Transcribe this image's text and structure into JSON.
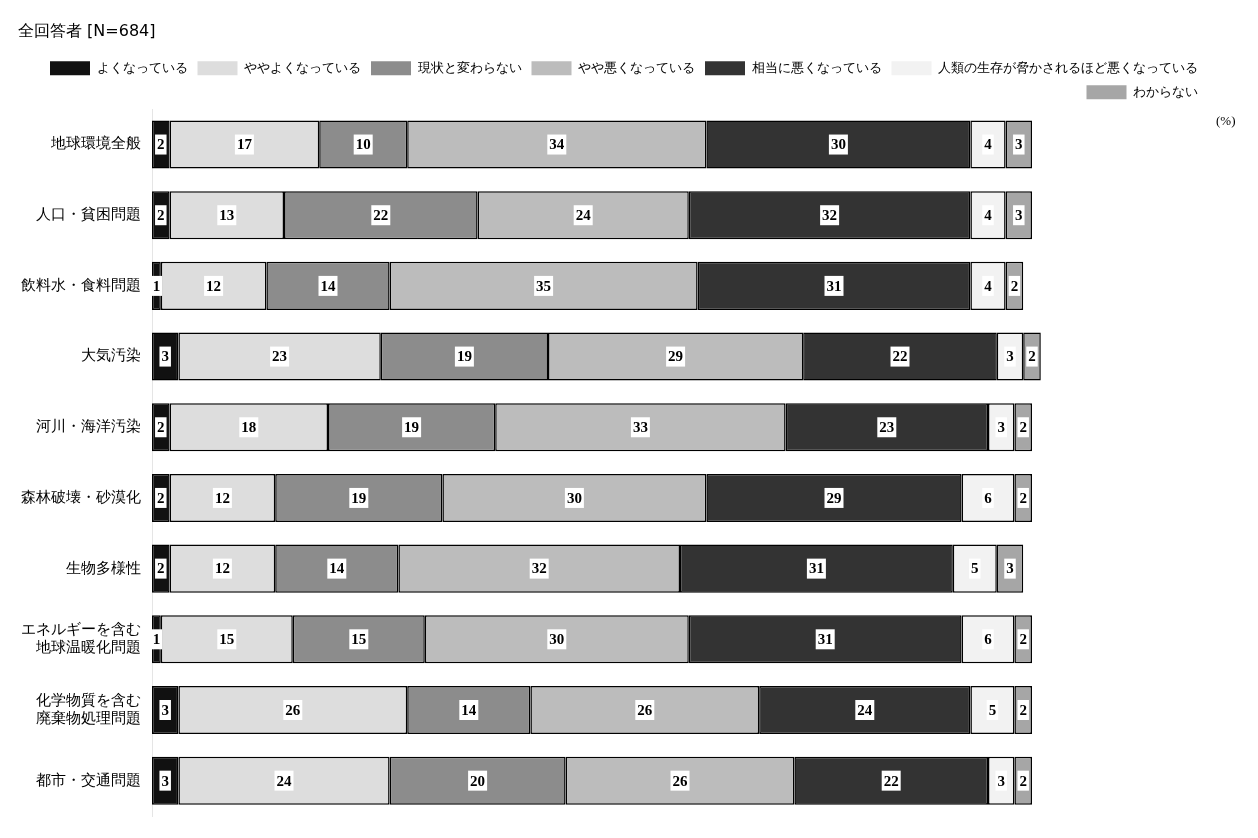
{
  "chart_data": {
    "type": "bar",
    "orientation": "horizontal",
    "stacked": true,
    "data_labels": true,
    "legend": "top",
    "grid": false,
    "tick_labels": "y",
    "title": "全回答者 [N=684]",
    "annotations": [
      "(%)"
    ],
    "categories": [
      "地球環境全般",
      "人口・貧困問題",
      "飲料水・食料問題",
      "大気汚染",
      "河川・海洋汚染",
      "森林破壊・砂漠化",
      "生物多様性",
      "エネルギーを含む地球温暖化問題",
      "化学物質を含む廃棄物処理問題",
      "都市・交通問題"
    ],
    "series": [
      {
        "name": "よくなっている",
        "color": "#111111",
        "values": [
          2,
          2,
          1,
          3,
          2,
          2,
          2,
          1,
          3,
          3
        ]
      },
      {
        "name": "ややよくなっている",
        "color": "#dddddd",
        "values": [
          17,
          13,
          12,
          23,
          18,
          12,
          12,
          15,
          26,
          24
        ]
      },
      {
        "name": "現状と変わらない",
        "color": "#8c8c8c",
        "values": [
          10,
          22,
          14,
          19,
          19,
          19,
          14,
          15,
          14,
          20
        ]
      },
      {
        "name": "やや悪くなっている",
        "color": "#bcbcbc",
        "values": [
          34,
          24,
          35,
          29,
          33,
          30,
          32,
          30,
          26,
          26
        ]
      },
      {
        "name": "相当に悪くなっている",
        "color": "#333333",
        "values": [
          30,
          32,
          31,
          22,
          23,
          29,
          31,
          31,
          24,
          22
        ]
      },
      {
        "name": "人類の生存が脅かされるほど悪くなっている",
        "color": "#f2f2f2",
        "values": [
          4,
          4,
          4,
          3,
          3,
          6,
          5,
          6,
          5,
          3
        ]
      },
      {
        "name": "わからない",
        "color": "#a6a6a6",
        "values": [
          3,
          3,
          2,
          2,
          2,
          2,
          3,
          2,
          2,
          2
        ]
      }
    ]
  }
}
